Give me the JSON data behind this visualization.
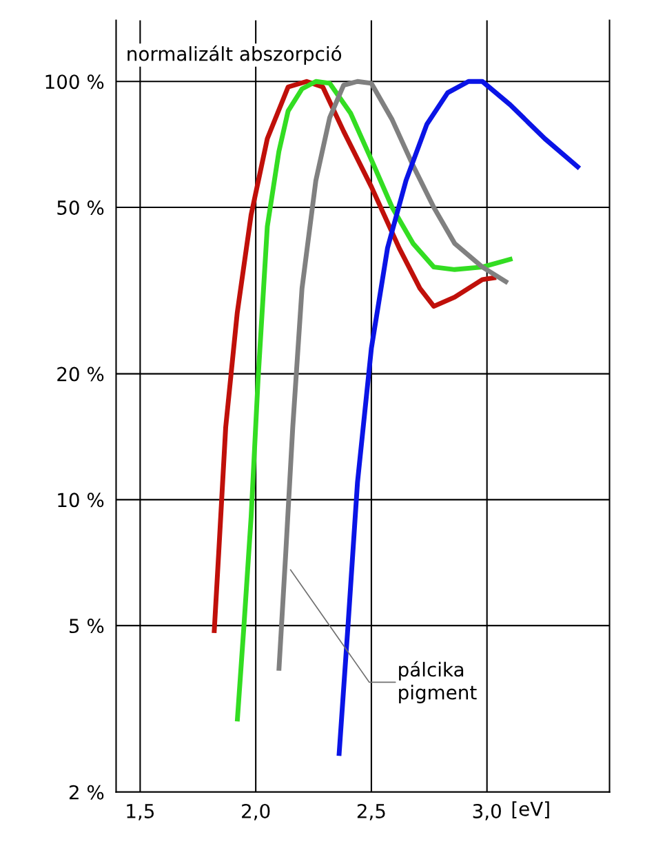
{
  "chart_data": {
    "type": "line",
    "ylabel": "normalizált abszorpció",
    "xlabel": "[eV]",
    "log": "y",
    "grid": true,
    "legend": false,
    "marker": "none",
    "line_style": "solid",
    "xlim": [
      1.396,
      3.53
    ],
    "ylim": [
      2,
      140
    ],
    "xticks": [
      {
        "value": 1.5,
        "label": "1,5"
      },
      {
        "value": 2.0,
        "label": "2,0"
      },
      {
        "value": 2.5,
        "label": "2,5"
      },
      {
        "value": 3.0,
        "label": "3,0"
      }
    ],
    "yticks": [
      {
        "value": 2,
        "label": "2 %"
      },
      {
        "value": 5,
        "label": "5 %"
      },
      {
        "value": 10,
        "label": "10 %"
      },
      {
        "value": 20,
        "label": "20 %"
      },
      {
        "value": 50,
        "label": "50 %"
      },
      {
        "value": 100,
        "label": "100 %"
      }
    ],
    "series": [
      {
        "color": "#c0100a",
        "x": [
          1.82,
          1.84,
          1.87,
          1.92,
          1.98,
          2.05,
          2.14,
          2.22,
          2.29,
          2.38,
          2.5,
          2.62,
          2.71,
          2.77,
          2.86,
          2.98,
          3.04
        ],
        "values": [
          4.8,
          7.5,
          14.9,
          28,
          48,
          73,
          97,
          100,
          97,
          76,
          56,
          40,
          32,
          29,
          30.5,
          33.6,
          34
        ]
      },
      {
        "color": "#33dd22",
        "x": [
          1.92,
          1.95,
          1.98,
          2.01,
          2.05,
          2.1,
          2.14,
          2.2,
          2.26,
          2.32,
          2.41,
          2.5,
          2.59,
          2.68,
          2.77,
          2.86,
          2.98,
          3.11
        ],
        "values": [
          2.95,
          5.1,
          9.1,
          19.4,
          45,
          68,
          85,
          96,
          100,
          99,
          84,
          65,
          50,
          41,
          36,
          35.5,
          36,
          37.7
        ]
      },
      {
        "color": "#808080",
        "x": [
          2.1,
          2.13,
          2.16,
          2.2,
          2.26,
          2.32,
          2.38,
          2.44,
          2.5,
          2.59,
          2.68,
          2.77,
          2.86,
          2.98,
          3.09
        ],
        "values": [
          3.9,
          7.5,
          14.9,
          32,
          58,
          82,
          98,
          100,
          99,
          81,
          63,
          50,
          41,
          36,
          33
        ]
      },
      {
        "color": "#0a14e6",
        "x": [
          2.36,
          2.4,
          2.44,
          2.5,
          2.57,
          2.65,
          2.74,
          2.83,
          2.92,
          2.98,
          3.1,
          3.25,
          3.4
        ],
        "values": [
          2.44,
          5.1,
          11,
          23,
          40,
          58,
          79,
          94,
          100,
          100,
          88,
          73,
          62
        ]
      }
    ],
    "annotations": [
      {
        "text": "pálcika\npigment",
        "x": 2.15,
        "y": 6.8
      }
    ]
  }
}
